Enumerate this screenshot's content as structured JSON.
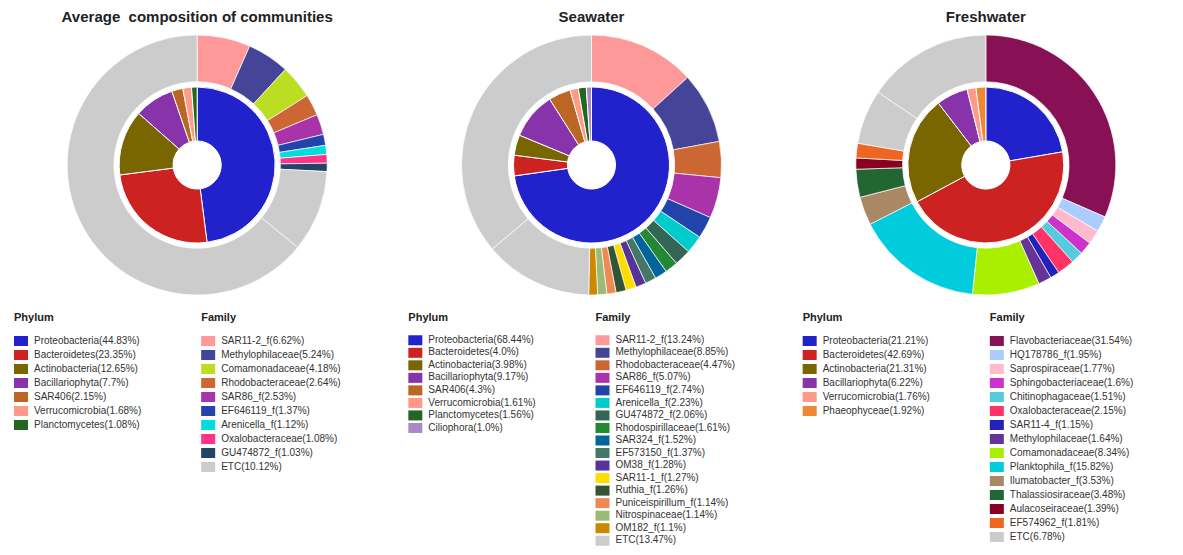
{
  "chart_data": [
    {
      "type": "pie",
      "title": "Average  composition of communities",
      "legend": "bottom",
      "series": [
        {
          "name": "Phylum",
          "categories": [
            "Proteobacteria(44.83%)",
            "Bacteroidetes(23.35%)",
            "Actinobacteria(12.65%)",
            "Bacillariophyta(7.7%)",
            "SAR406(2.15%)",
            "Verrucomicrobia(1.68%)",
            "Planctomycetes(1.08%)"
          ],
          "values": [
            44.83,
            23.35,
            12.65,
            7.7,
            2.15,
            1.68,
            1.08
          ],
          "colors": [
            "#2222cc",
            "#cc2222",
            "#7a6600",
            "#8833aa",
            "#bb6622",
            "#ff9988",
            "#226622"
          ]
        },
        {
          "name": "Family",
          "categories": [
            "SAR11-2_f(6.62%)",
            "Methylophilaceae(5.24%)",
            "Comamonadaceae(4.18%)",
            "Rhodobacteraceae(2.64%)",
            "SAR86_f(2.53%)",
            "EF646119_f(1.37%)",
            "Arenicella_f(1.12%)",
            "Oxalobacteraceae(1.08%)",
            "GU474872_f(1.03%)",
            "ETC(10.12%)",
            null
          ],
          "values": [
            6.62,
            5.24,
            4.18,
            2.64,
            2.53,
            1.37,
            1.12,
            1.08,
            1.03,
            10.12,
            64.07
          ],
          "colors": [
            "#ff9999",
            "#444499",
            "#bbdd22",
            "#cc6633",
            "#aa33aa",
            "#2244aa",
            "#00dddd",
            "#ff3388",
            "#224466",
            "#cccccc",
            "#cccccc"
          ]
        }
      ]
    },
    {
      "type": "pie",
      "title": "Seawater",
      "legend": "bottom",
      "series": [
        {
          "name": "Phylum",
          "categories": [
            "Proteobacteria(68.44%)",
            "Bacteroidetes(4.0%)",
            "Actinobacteria(3.98%)",
            "Bacillariophyta(9.17%)",
            "SAR406(4.3%)",
            "Verrucomicrobia(1.61%)",
            "Planctomycetes(1.56%)",
            "Ciliophora(1.0%)"
          ],
          "values": [
            68.44,
            4.0,
            3.98,
            9.17,
            4.3,
            1.61,
            1.56,
            1.0
          ],
          "colors": [
            "#2222cc",
            "#cc2222",
            "#7a6600",
            "#8833aa",
            "#bb6622",
            "#ff9988",
            "#226622",
            "#aa88cc"
          ]
        },
        {
          "name": "Family",
          "categories": [
            "SAR11-2_f(13.24%)",
            "Methylophilaceae(8.85%)",
            "Rhodobacteraceae(4.47%)",
            "SAR86_f(5.07%)",
            "EF646119_f(2.74%)",
            "Arenicella_f(2.23%)",
            "GU474872_f(2.06%)",
            "Rhodospirillaceae(1.61%)",
            "SAR324_f(1.52%)",
            "EF573150_f(1.37%)",
            "OM38_f(1.28%)",
            "SAR11-1_f(1.27%)",
            "Ruthia_f(1.26%)",
            "Puniceispirillum_f(1.14%)",
            "Nitrospinaceae(1.14%)",
            "OM182_f(1.1%)",
            "ETC(13.47%)",
            null
          ],
          "values": [
            13.24,
            8.85,
            4.47,
            5.07,
            2.74,
            2.23,
            2.06,
            1.61,
            1.52,
            1.37,
            1.28,
            1.27,
            1.26,
            1.14,
            1.14,
            1.1,
            13.47,
            36.18
          ],
          "colors": [
            "#ff9999",
            "#444499",
            "#cc6633",
            "#aa33aa",
            "#2244aa",
            "#00cccc",
            "#336655",
            "#228833",
            "#006699",
            "#447766",
            "#553399",
            "#ffdd00",
            "#335533",
            "#ee8855",
            "#99bb77",
            "#cc8800",
            "#cccccc",
            "#cccccc"
          ]
        }
      ]
    },
    {
      "type": "pie",
      "title": "Freshwater",
      "legend": "bottom",
      "series": [
        {
          "name": "Phylum",
          "categories": [
            "Proteobacteria(21.21%)",
            "Bacteroidetes(42.69%)",
            "Actinobacteria(21.31%)",
            "Bacillariophyta(6.22%)",
            "Verrucomicrobia(1.76%)",
            "Phaeophyceae(1.92%)"
          ],
          "values": [
            21.21,
            42.69,
            21.31,
            6.22,
            1.76,
            1.92
          ],
          "colors": [
            "#2222cc",
            "#cc2222",
            "#7a6600",
            "#8833aa",
            "#ff9988",
            "#ee8833"
          ]
        },
        {
          "name": "Family",
          "categories": [
            "Flavobacteriaceae(31.54%)",
            "HQ178786_f(1.95%)",
            "Saprospiraceae(1.77%)",
            "Sphingobacteriaceae(1.6%)",
            "Chitinophagaceae(1.51%)",
            "Oxalobacteraceae(2.15%)",
            "SAR11-4_f(1.15%)",
            "Methylophilaceae(1.64%)",
            "Comamonadaceae(8.34%)",
            "Planktophila_f(15.82%)",
            "Ilumatobacter_f(3.53%)",
            "Thalassiosiraceae(3.48%)",
            "Aulacoseiraceae(1.39%)",
            "EF574962_f(1.81%)",
            "ETC(6.78%)",
            null
          ],
          "values": [
            31.54,
            1.95,
            1.77,
            1.6,
            1.51,
            2.15,
            1.15,
            1.64,
            8.34,
            15.82,
            3.53,
            3.48,
            1.39,
            1.81,
            6.78,
            15.54
          ],
          "colors": [
            "#881155",
            "#aaccff",
            "#ffbbcc",
            "#cc33cc",
            "#55ccdd",
            "#ff3366",
            "#2222bb",
            "#663399",
            "#aaee00",
            "#00ccdd",
            "#aa8866",
            "#226633",
            "#880022",
            "#ee6622",
            "#cccccc",
            "#cccccc"
          ]
        }
      ]
    }
  ]
}
